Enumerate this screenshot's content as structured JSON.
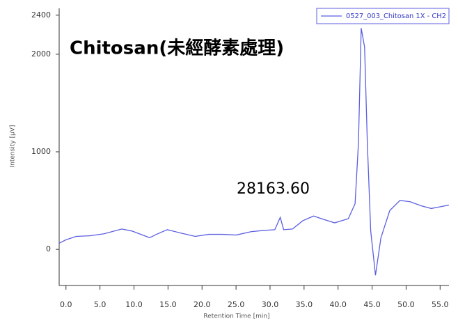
{
  "chart_data": {
    "type": "line",
    "title": "Chitosan(未經酵素處理)",
    "annotations": [
      "28163.60"
    ],
    "x_label": "Retention Time [min]",
    "y_label": "Intensity [µV]",
    "x": [
      -1,
      0,
      1.5,
      3.6,
      5.6,
      8.2,
      9.7,
      11.8,
      12.3,
      13.3,
      14.9,
      16.9,
      19,
      21,
      23,
      25,
      27.2,
      29.2,
      30.7,
      31.5,
      32,
      33.3,
      34.8,
      36.4,
      37.9,
      39.5,
      41.5,
      42.5,
      43,
      43.4,
      43.9,
      44.3,
      44.8,
      45.5,
      46.3,
      47.6,
      49.1,
      50.6,
      52.2,
      53.7,
      56.3
    ],
    "series": [
      {
        "name": "0527_003_Chitosan 1X - CH2",
        "color": "#5b5fe0",
        "values": [
          63,
          98,
          133,
          140,
          160,
          209,
          188,
          133,
          119,
          154,
          202,
          167,
          133,
          154,
          154,
          147,
          181,
          195,
          202,
          328,
          202,
          209,
          293,
          342,
          307,
          272,
          314,
          468,
          1096,
          2268,
          2072,
          1096,
          188,
          -265,
          119,
          398,
          502,
          488,
          447,
          419,
          454
        ]
      }
    ],
    "xlim": [
      -1,
      56.3
    ],
    "ylim": [
      -370,
      2470
    ],
    "xticks": [
      {
        "value": 0,
        "label": "0.0"
      },
      {
        "value": 5,
        "label": "5.0"
      },
      {
        "value": 10,
        "label": "10.0"
      },
      {
        "value": 15,
        "label": "15.0"
      },
      {
        "value": 20,
        "label": "20.0"
      },
      {
        "value": 25,
        "label": "25.0"
      },
      {
        "value": 30,
        "label": "30.0"
      },
      {
        "value": 35,
        "label": "35.0"
      },
      {
        "value": 40,
        "label": "40.0"
      },
      {
        "value": 45,
        "label": "45.0"
      },
      {
        "value": 50,
        "label": "50.0"
      },
      {
        "value": 55,
        "label": "55.0"
      }
    ],
    "yticks": [
      0,
      1000,
      2000,
      2400
    ],
    "legend": "top-right"
  }
}
